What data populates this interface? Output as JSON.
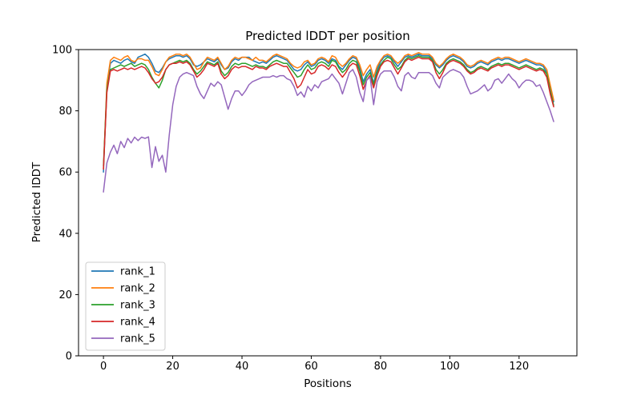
{
  "figure": {
    "background": "#ffffff",
    "axis_color": "#000000"
  },
  "chart_data": {
    "type": "line",
    "title": "Predicted lDDT per position",
    "xlabel": "Positions",
    "ylabel": "Predicted lDDT",
    "xlim": [
      -7.2,
      136.7
    ],
    "ylim": [
      0,
      100
    ],
    "x_ticks": [
      0,
      20,
      40,
      60,
      80,
      100,
      120
    ],
    "y_ticks": [
      0,
      20,
      40,
      60,
      80,
      100
    ],
    "grid": false,
    "legend_position": "lower left",
    "x_start": 0,
    "x_step": 1,
    "series": [
      {
        "name": "rank_1",
        "color": "#1f77b4",
        "values": [
          60,
          88,
          95.5,
          96.5,
          96,
          95.5,
          96.5,
          97,
          96,
          95.5,
          97.5,
          98,
          98.5,
          97.5,
          95.5,
          93,
          92.5,
          94,
          96,
          97,
          97.5,
          98,
          98,
          97.5,
          98,
          97,
          95,
          94.5,
          95,
          96,
          97,
          96.5,
          96,
          97,
          95,
          93.5,
          94,
          96,
          97,
          96.5,
          97.5,
          97.5,
          97.5,
          96.5,
          96,
          95.5,
          96,
          95.5,
          96.5,
          97.5,
          98,
          97.5,
          97,
          96.5,
          95,
          93.5,
          93,
          93.5,
          95,
          96,
          94.5,
          95,
          96.5,
          97,
          96.5,
          95.5,
          97,
          96.5,
          94.5,
          93.5,
          95,
          96.5,
          97.5,
          97,
          94,
          89.5,
          92,
          93.5,
          89,
          93.5,
          96,
          97.5,
          98,
          97.5,
          96,
          94.5,
          96,
          97.5,
          98,
          97.5,
          98,
          98.5,
          98,
          98,
          98,
          97,
          95,
          94,
          95,
          96.5,
          97.5,
          98,
          97.5,
          97,
          96,
          94.5,
          94,
          94.5,
          95.5,
          96,
          95.5,
          95,
          96,
          96.5,
          97,
          96.5,
          97,
          97,
          96.5,
          96,
          95.5,
          96,
          96.5,
          96,
          95.5,
          95,
          95,
          94.5,
          92.5,
          88,
          83
        ]
      },
      {
        "name": "rank_2",
        "color": "#ff7f0e",
        "values": [
          61,
          89,
          96.5,
          97.5,
          97,
          96.5,
          97.5,
          98,
          96.5,
          96,
          97,
          97,
          96.5,
          96.5,
          94.5,
          92,
          91.5,
          93.5,
          96,
          97.5,
          98,
          98.5,
          98.5,
          98,
          98.5,
          97.5,
          95.5,
          93.5,
          94,
          96,
          97.5,
          97,
          96.5,
          97.5,
          95.5,
          93.5,
          94.5,
          96.5,
          97.5,
          97,
          97.5,
          97.5,
          97,
          96.5,
          97.5,
          96.5,
          96.5,
          96,
          97,
          98,
          98.5,
          98,
          97.5,
          97,
          95.5,
          94.5,
          94,
          94.5,
          96,
          96.5,
          95,
          95.5,
          97,
          97.5,
          97,
          96,
          98,
          97.5,
          95.5,
          94.5,
          95.5,
          97,
          98,
          97.5,
          95,
          91.5,
          93.5,
          95,
          91,
          94.5,
          96.5,
          98,
          98.5,
          98,
          96.5,
          95.5,
          96.5,
          98,
          98.5,
          98,
          98.5,
          99,
          98.5,
          98.5,
          98.5,
          97.5,
          95.5,
          94.5,
          95.5,
          97,
          98,
          98.5,
          98,
          97.5,
          96.5,
          95,
          94.5,
          95,
          96,
          96.5,
          96,
          95.5,
          96.5,
          97,
          97.5,
          97,
          97.5,
          97.5,
          97,
          96.5,
          96,
          96.5,
          97,
          96.5,
          96,
          95.5,
          95.5,
          95,
          93.5,
          88.5,
          83.5
        ]
      },
      {
        "name": "rank_3",
        "color": "#2ca02c",
        "values": [
          62,
          87,
          93.5,
          94,
          94.5,
          95,
          94.5,
          95,
          95.5,
          94.5,
          95,
          95.5,
          95,
          93.5,
          91,
          89,
          87.5,
          90,
          93.5,
          95,
          95.5,
          96,
          96.5,
          96,
          96.5,
          95.5,
          93.5,
          92,
          93,
          94.5,
          96,
          95.5,
          95,
          96,
          93,
          91.5,
          92.5,
          94.5,
          95.5,
          95,
          95.5,
          95.5,
          95,
          94.5,
          95,
          94.5,
          94.5,
          94,
          95,
          96,
          96.5,
          96,
          95.5,
          95.5,
          94,
          92.5,
          91,
          91.5,
          93.5,
          95,
          93.5,
          94,
          95.5,
          96,
          95.5,
          94.5,
          96.5,
          96,
          94,
          92.5,
          93.5,
          95.5,
          96.5,
          96,
          93,
          88.5,
          91,
          92.5,
          88.5,
          92.5,
          95,
          96.5,
          97.5,
          97,
          95,
          93.5,
          94.5,
          96.5,
          97.5,
          97,
          97.5,
          98,
          97.5,
          97.5,
          97.5,
          96.5,
          93.5,
          92,
          93.5,
          95.5,
          96.5,
          97,
          96.5,
          96,
          95,
          93.5,
          92.5,
          93,
          94,
          94.5,
          94,
          93.5,
          94.5,
          95,
          95.5,
          95,
          95.5,
          95.5,
          95,
          94.5,
          94,
          94.5,
          95,
          94.5,
          94,
          93.5,
          94,
          93.5,
          92,
          86.5,
          81.8
        ]
      },
      {
        "name": "rank_4",
        "color": "#d62728",
        "values": [
          61,
          86,
          93,
          93.5,
          93,
          93.5,
          94,
          93.5,
          94,
          93.5,
          94,
          94.5,
          94,
          92.5,
          90.5,
          89,
          89.5,
          91,
          93.5,
          95,
          95.5,
          95.5,
          96,
          95.5,
          96,
          95,
          93,
          91,
          92,
          93.5,
          95.5,
          95,
          94.5,
          95.5,
          92,
          90.5,
          91.5,
          93.5,
          94.5,
          94,
          94.5,
          94.5,
          94,
          93.5,
          94.5,
          94,
          94,
          93.5,
          94.5,
          95,
          95.5,
          95,
          94.5,
          94.5,
          92.5,
          90.5,
          87.5,
          88.5,
          91,
          93.5,
          92,
          92.5,
          94.5,
          95,
          94.5,
          93.5,
          95,
          94.5,
          92.5,
          91,
          92.5,
          94.5,
          95.5,
          95,
          91.5,
          87,
          90,
          91.5,
          87.5,
          91.5,
          94.5,
          96,
          96.5,
          96,
          94,
          92,
          94,
          96,
          97,
          96.5,
          97,
          97.5,
          97,
          97,
          97,
          96,
          92.5,
          90.5,
          92.5,
          95,
          96,
          96.5,
          96,
          95.5,
          94.5,
          93,
          92,
          92.5,
          93.5,
          94,
          93.5,
          93,
          94,
          94.5,
          95,
          94.5,
          95,
          95,
          94.5,
          94,
          93.5,
          94,
          94.5,
          94,
          93.5,
          93,
          93.5,
          93,
          91,
          85.5,
          81.3
        ]
      },
      {
        "name": "rank_5",
        "color": "#9467bd",
        "values": [
          53.5,
          63,
          66.5,
          68.8,
          66,
          70,
          68,
          71,
          69.5,
          71.4,
          70.3,
          71.4,
          71,
          71.5,
          61.5,
          68.3,
          63.5,
          65.5,
          60,
          72,
          82,
          88,
          91,
          92,
          92.5,
          92,
          91.5,
          88,
          85.5,
          84,
          86.5,
          89,
          88,
          89.5,
          88.5,
          84.5,
          80.5,
          84,
          86.5,
          86.5,
          85,
          86.5,
          88.5,
          89.5,
          90,
          90.5,
          91,
          91,
          91,
          91.5,
          91,
          91.5,
          91.5,
          90.5,
          90,
          88,
          85,
          86.2,
          84.5,
          88,
          86.5,
          88.5,
          87.5,
          89.5,
          90,
          90.5,
          92,
          90.5,
          89,
          85.5,
          89,
          92.5,
          93.5,
          91,
          86,
          83,
          90,
          91,
          82,
          89.5,
          92,
          93,
          93,
          93,
          91,
          88,
          86.5,
          91.5,
          92.5,
          91,
          90.5,
          92.5,
          92.5,
          92.5,
          92.5,
          91.5,
          89,
          87.5,
          91,
          92,
          93,
          93.5,
          93,
          92.5,
          91,
          88,
          85.5,
          86,
          86.5,
          87.5,
          88.5,
          86.5,
          87.5,
          90,
          90.5,
          89,
          90.5,
          92,
          90.5,
          89.5,
          87.5,
          89,
          90,
          90,
          89.5,
          88,
          88.5,
          86,
          83,
          80,
          76.5
        ]
      }
    ]
  }
}
